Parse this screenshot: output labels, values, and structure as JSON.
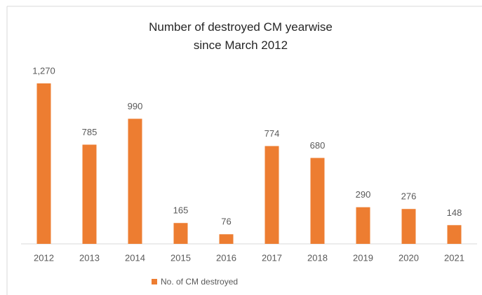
{
  "chart_data": {
    "type": "bar",
    "title": "Number of destroyed CM yearwise since March 2012",
    "categories": [
      "2012",
      "2013",
      "2014",
      "2015",
      "2016",
      "2017",
      "2018",
      "2019",
      "2020",
      "2021"
    ],
    "series": [
      {
        "name": "No. of CM destroyed",
        "color": "#ed7d31",
        "values": [
          1270,
          785,
          990,
          165,
          76,
          774,
          680,
          290,
          276,
          148
        ],
        "value_labels": [
          "1,270",
          "785",
          "990",
          "165",
          "76",
          "774",
          "680",
          "290",
          "276",
          "148"
        ]
      }
    ],
    "legend": "bottom"
  }
}
